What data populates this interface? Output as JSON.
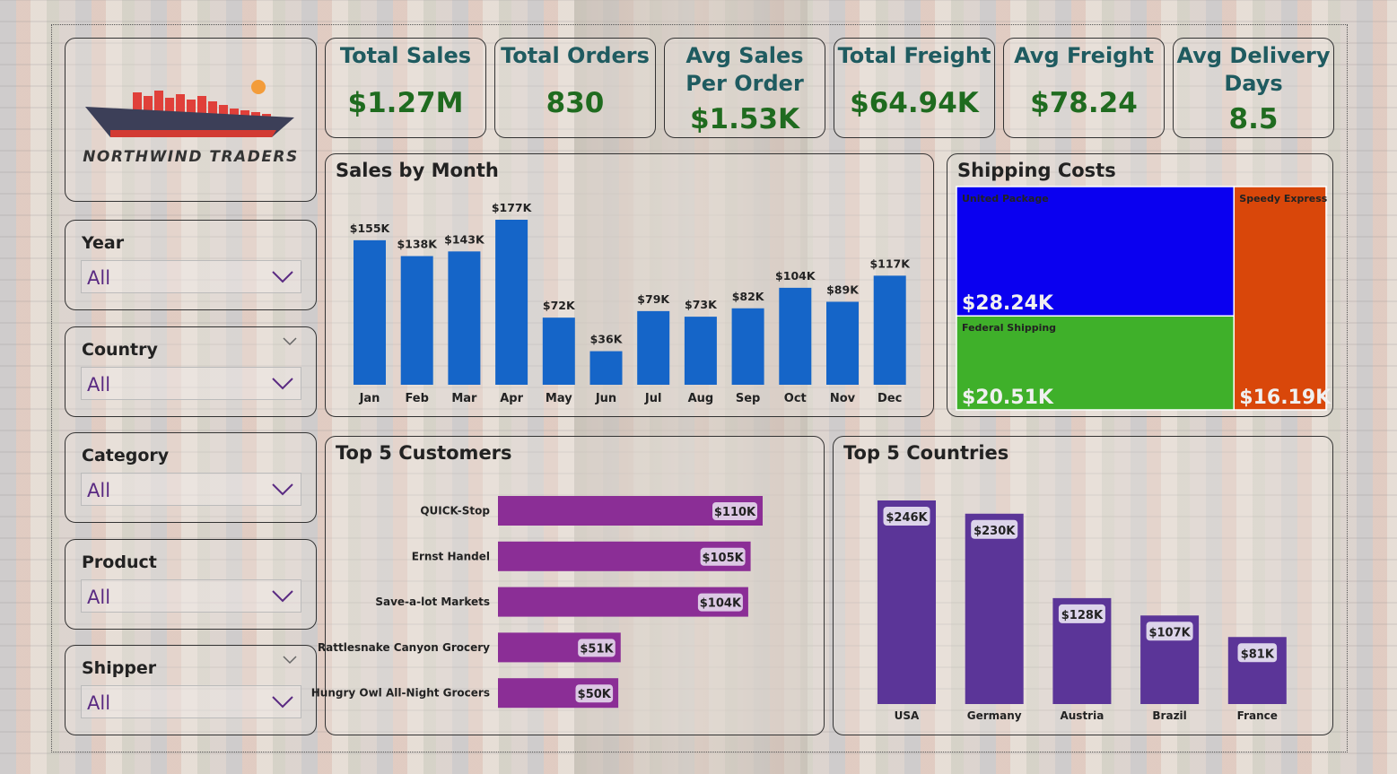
{
  "brand": {
    "name": "NORTHWIND TRADERS"
  },
  "slicers": [
    {
      "title": "Year",
      "value": "All"
    },
    {
      "title": "Country",
      "value": "All"
    },
    {
      "title": "Category",
      "value": "All"
    },
    {
      "title": "Product",
      "value": "All"
    },
    {
      "title": "Shipper",
      "value": "All"
    }
  ],
  "kpis": [
    {
      "label": "Total Sales",
      "value": "$1.27M"
    },
    {
      "label": "Total Orders",
      "value": "830"
    },
    {
      "label": "Avg Sales Per Order",
      "label_lines": [
        "Avg Sales",
        "Per Order"
      ],
      "value": "$1.53K"
    },
    {
      "label": "Total Freight",
      "value": "$64.94K"
    },
    {
      "label": "Avg Freight",
      "value": "$78.24"
    },
    {
      "label": "Avg Delivery Days",
      "label_lines": [
        "Avg Delivery",
        "Days"
      ],
      "value": "8.5"
    }
  ],
  "colors": {
    "month_bar": "#1565c8",
    "customer_bar": "#8b2e96",
    "country_bar": "#5b3598",
    "united_package": "#0a00f0",
    "federal_shipping": "#3fb02a",
    "speedy_express": "#d9470a",
    "kpi_label": "#1f5b60",
    "kpi_value": "#1f6b1f"
  },
  "chart_data": [
    {
      "type": "bar",
      "title": "Sales by Month",
      "categories": [
        "Jan",
        "Feb",
        "Mar",
        "Apr",
        "May",
        "Jun",
        "Jul",
        "Aug",
        "Sep",
        "Oct",
        "Nov",
        "Dec"
      ],
      "values": [
        155,
        138,
        143,
        177,
        72,
        36,
        79,
        73,
        82,
        104,
        89,
        117
      ],
      "labels": [
        "$155K",
        "$138K",
        "$143K",
        "$177K",
        "$72K",
        "$36K",
        "$79K",
        "$73K",
        "$82K",
        "$104K",
        "$89K",
        "$117K"
      ],
      "ylim": [
        0,
        177
      ]
    },
    {
      "type": "treemap",
      "title": "Shipping Costs",
      "items": [
        {
          "name": "United Package",
          "value": 28.24,
          "label": "$28.24K"
        },
        {
          "name": "Federal Shipping",
          "value": 20.51,
          "label": "$20.51K"
        },
        {
          "name": "Speedy Express",
          "value": 16.19,
          "label": "$16.19K"
        }
      ]
    },
    {
      "type": "bar",
      "orientation": "horizontal",
      "title": "Top 5 Customers",
      "categories": [
        "QUICK-Stop",
        "Ernst Handel",
        "Save-a-lot Markets",
        "Rattlesnake Canyon Grocery",
        "Hungry Owl All-Night Grocers"
      ],
      "values": [
        110,
        105,
        104,
        51,
        50
      ],
      "labels": [
        "$110K",
        "$105K",
        "$104K",
        "$51K",
        "$50K"
      ],
      "xlim": [
        0,
        110
      ]
    },
    {
      "type": "bar",
      "title": "Top 5 Countries",
      "categories": [
        "USA",
        "Germany",
        "Austria",
        "Brazil",
        "France"
      ],
      "values": [
        246,
        230,
        128,
        107,
        81
      ],
      "labels": [
        "$246K",
        "$230K",
        "$128K",
        "$107K",
        "$81K"
      ],
      "ylim": [
        0,
        246
      ]
    }
  ]
}
